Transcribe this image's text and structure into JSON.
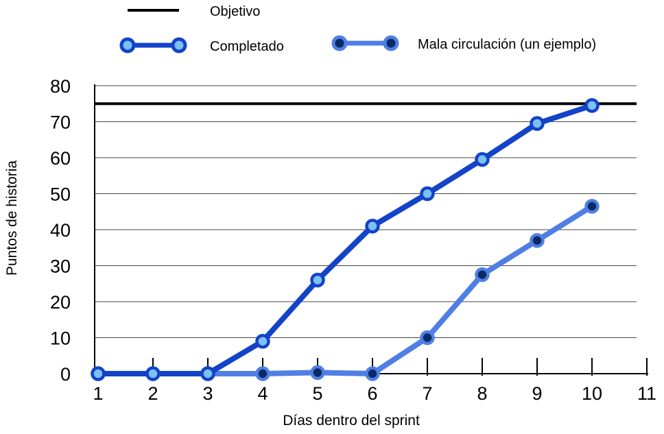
{
  "chart_data": {
    "type": "line",
    "title": "",
    "xlabel": "Días dentro del sprint",
    "ylabel": "Puntos de historia",
    "xlim": [
      1,
      11
    ],
    "ylim": [
      0,
      80
    ],
    "x_ticks": [
      "1",
      "2",
      "3",
      "4",
      "5",
      "6",
      "7",
      "8",
      "9",
      "10",
      "11"
    ],
    "y_ticks": [
      "0",
      "10",
      "20",
      "30",
      "40",
      "50",
      "60",
      "70",
      "80"
    ],
    "grid": "horizontal",
    "legend_position": "top",
    "goal": {
      "name": "Objetivo",
      "value": 75,
      "color": "#000000"
    },
    "series": [
      {
        "name": "Completado",
        "x": [
          1,
          2,
          3,
          4,
          5,
          6,
          7,
          8,
          9,
          10
        ],
        "values": [
          0,
          0,
          0,
          9,
          26,
          41,
          50,
          59.5,
          69.5,
          74.5
        ],
        "line_color": "#1243c9",
        "marker_fill": "#7cc1f2"
      },
      {
        "name": "Mala circulación (un ejemplo)",
        "x": [
          1,
          2,
          3,
          4,
          5,
          6,
          7,
          8,
          9,
          10
        ],
        "values": [
          0,
          0,
          0,
          0,
          0.3,
          0,
          10,
          27.5,
          37,
          46.5
        ],
        "line_color": "#4f7fe4",
        "marker_fill": "#0a2a66"
      }
    ]
  }
}
